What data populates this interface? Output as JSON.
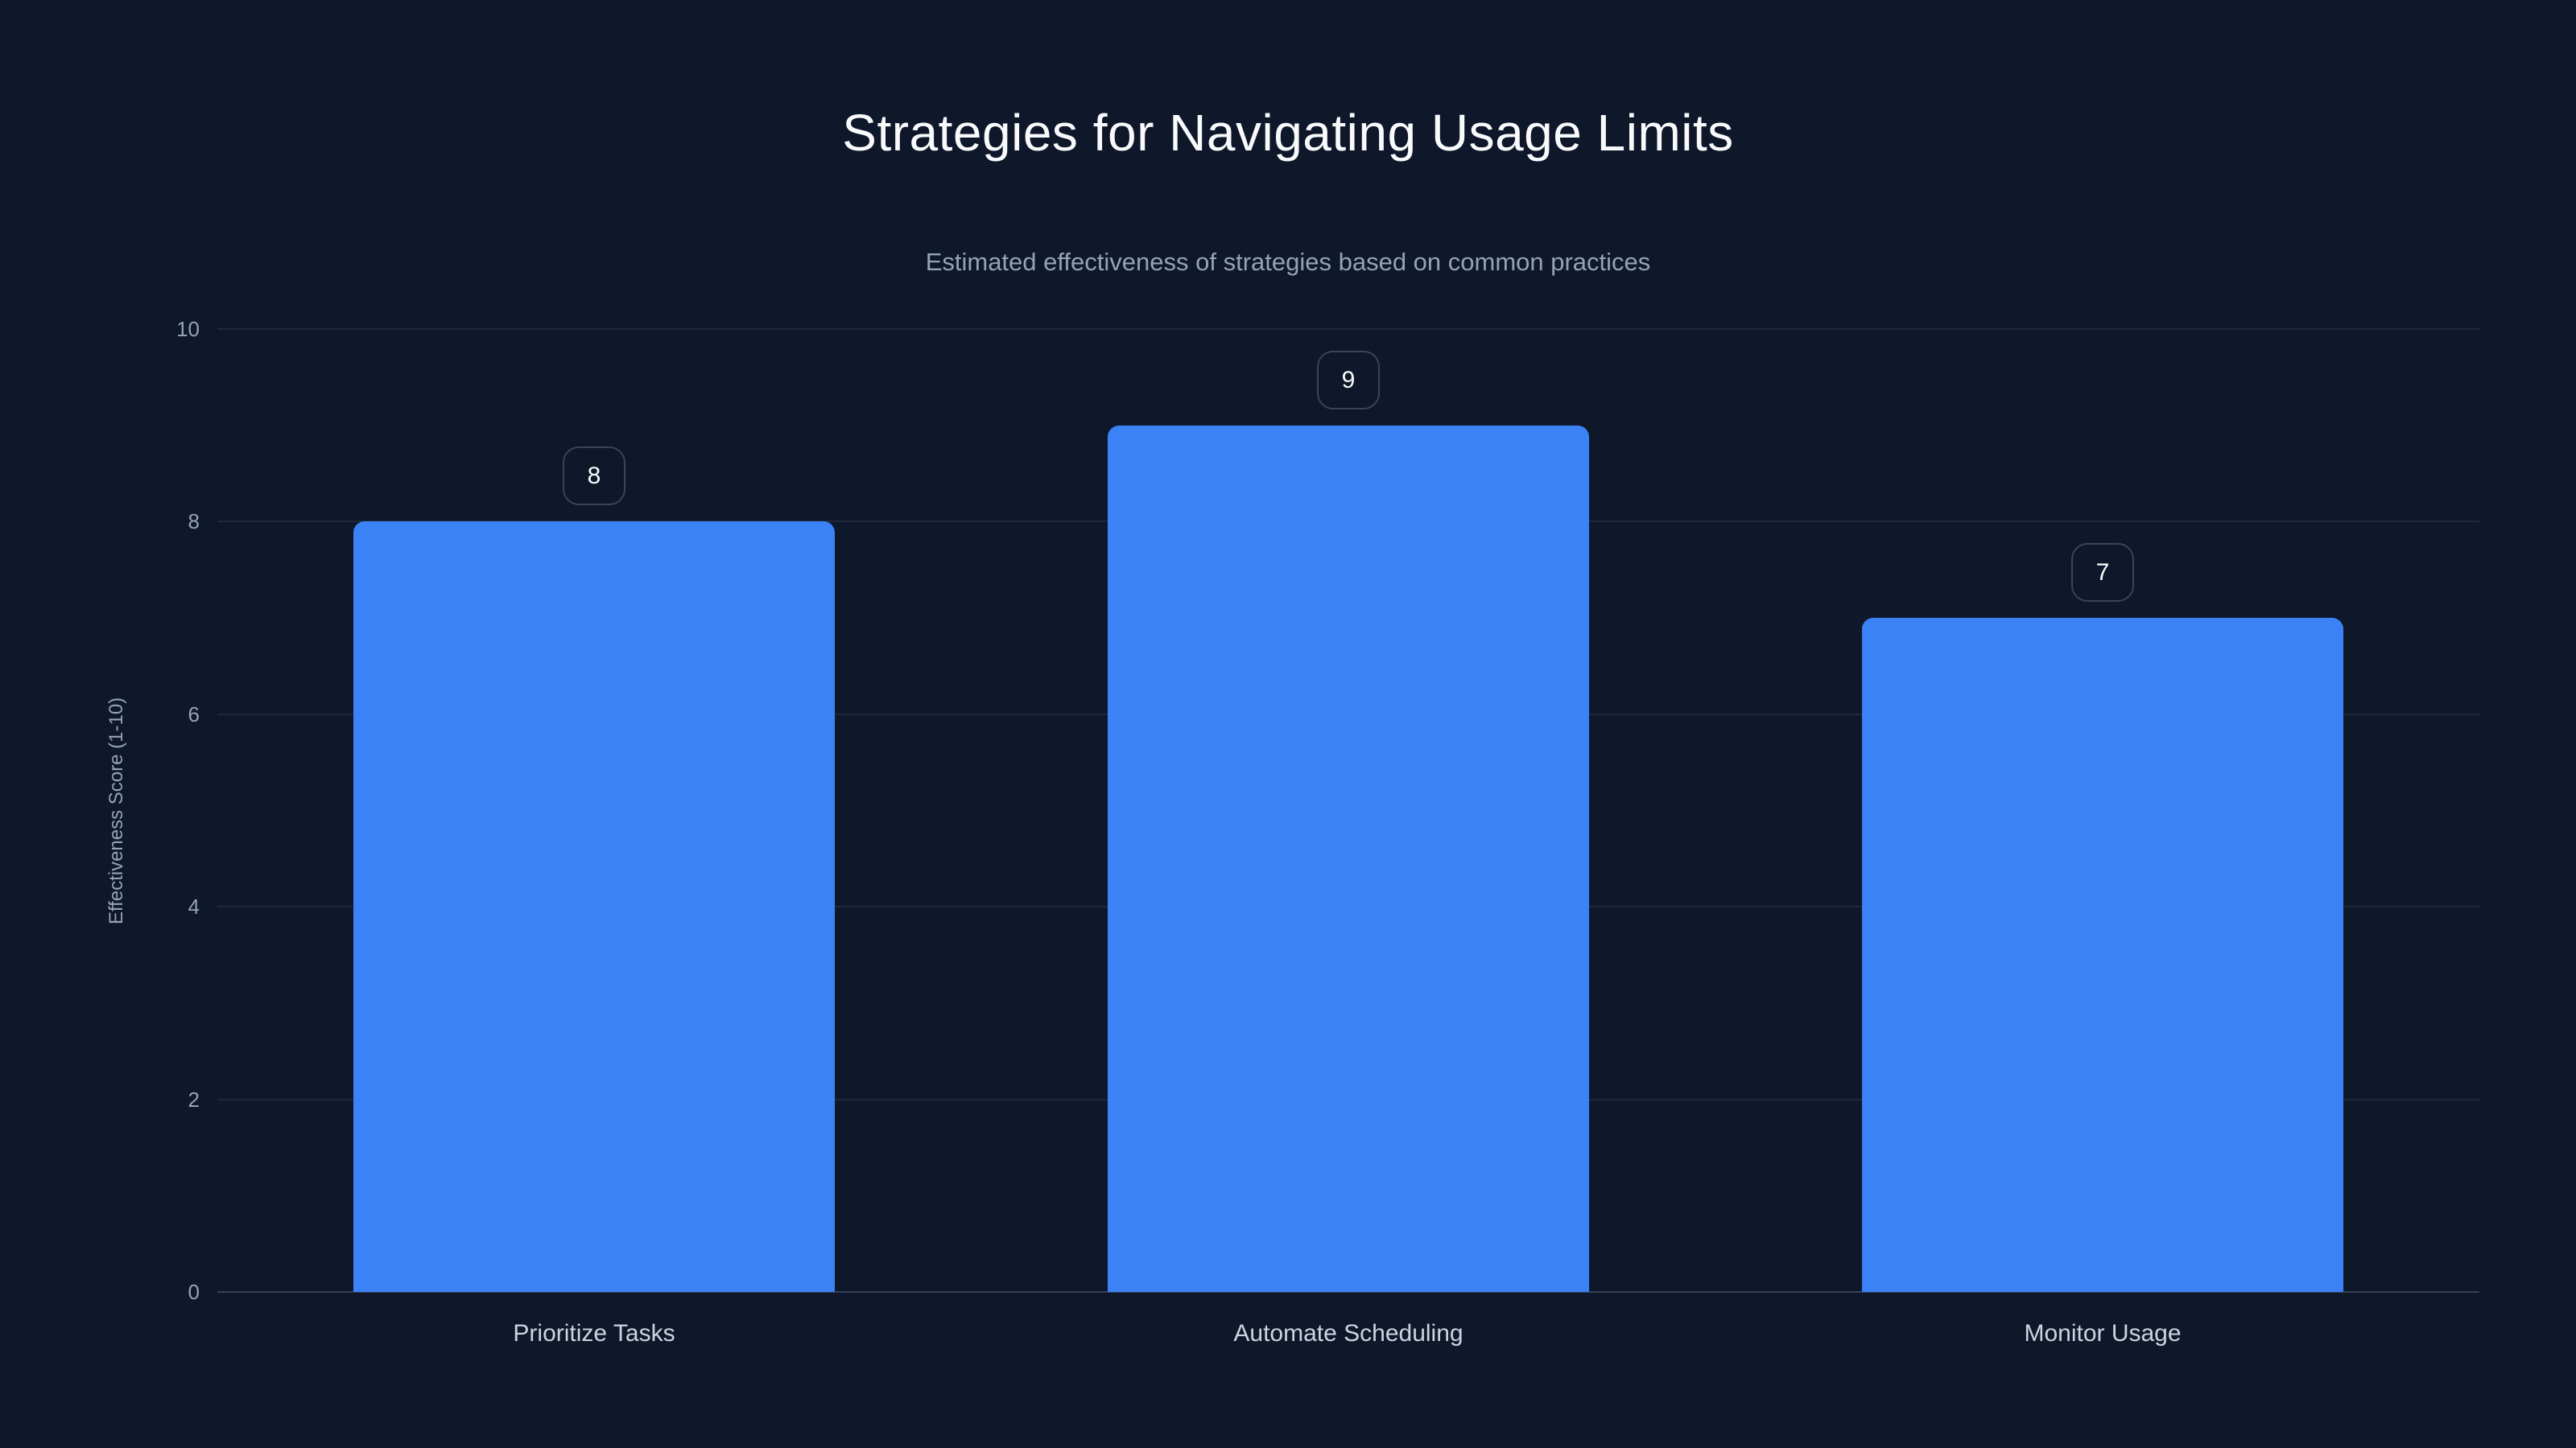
{
  "page": {
    "background_color": "#0f172a"
  },
  "header": {
    "title": "Strategies for Navigating Usage Limits",
    "subtitle": "Estimated effectiveness of strategies based on common practices"
  },
  "chart_data": {
    "type": "bar",
    "title": "Strategies for Navigating Usage Limits",
    "subtitle": "Estimated effectiveness of strategies based on common practices",
    "categories": [
      "Prioritize Tasks",
      "Automate Scheduling",
      "Monitor Usage"
    ],
    "values": [
      8,
      9,
      7
    ],
    "value_labels": [
      "8",
      "9",
      "7"
    ],
    "xlabel": "",
    "ylabel": "Effectiveness Score (1-10)",
    "ylim": [
      0,
      10
    ],
    "yticks": [
      0,
      2,
      4,
      6,
      8,
      10
    ],
    "grid": "horizontal",
    "legend": "none",
    "bar_color": "#3b82f6",
    "gridline_color": "rgba(148,163,184,0.12)",
    "baseline_color": "rgba(148,163,184,0.30)",
    "tick_label_color": "#94a3b8",
    "category_label_color": "#cbd5e1",
    "value_badge_text_color": "#f8fafc",
    "value_badge_border_color": "rgba(148,163,184,0.32)"
  }
}
